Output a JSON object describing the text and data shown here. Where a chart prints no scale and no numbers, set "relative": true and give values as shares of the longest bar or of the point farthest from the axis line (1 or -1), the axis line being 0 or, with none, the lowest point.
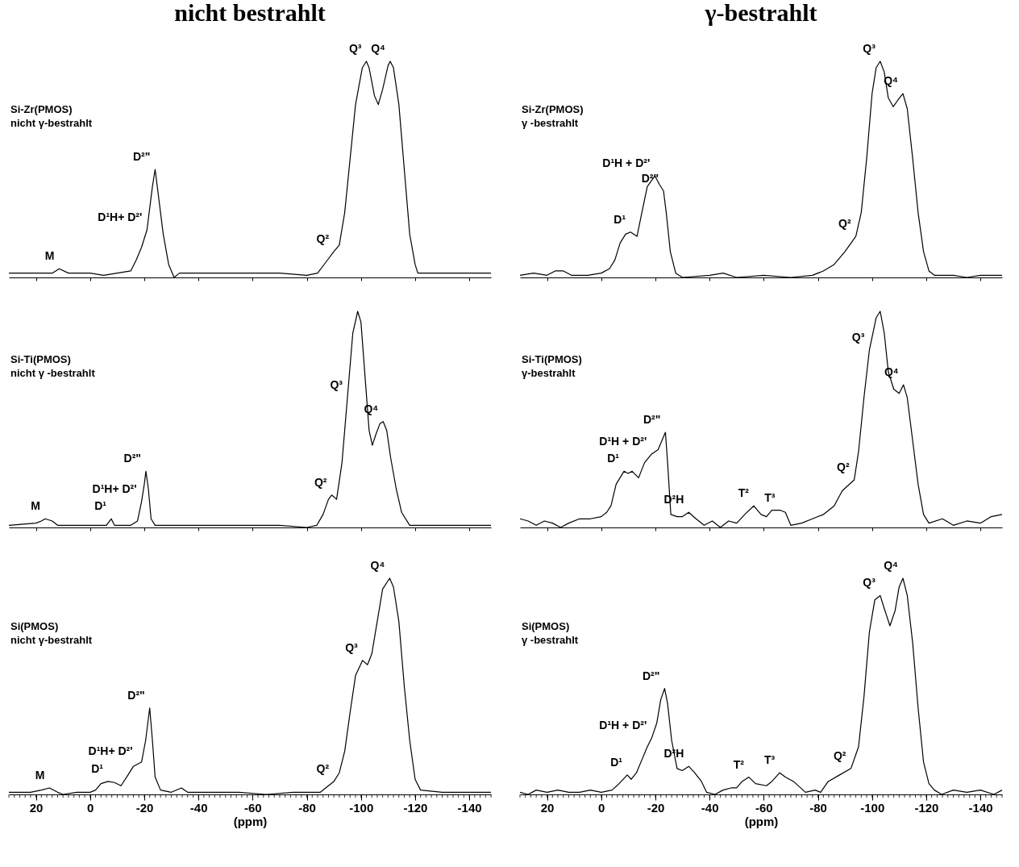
{
  "chart_data": [
    {
      "type": "line",
      "title": "nicht bestrahlt",
      "relative": true,
      "xlim": [
        30,
        -148
      ],
      "xticks": [
        20,
        0,
        -20,
        -40,
        -60,
        -80,
        -100,
        -120,
        -140
      ],
      "tick_labels": false,
      "series": [
        {
          "color": "#000000",
          "x": [
            30,
            20,
            14,
            11.4,
            8,
            0,
            -5,
            -10,
            -15,
            -17,
            -19,
            -21,
            -23,
            -24,
            -25,
            -27,
            -29,
            -31,
            -33,
            -40,
            -50,
            -60,
            -70,
            -80,
            -84,
            -87,
            -90,
            -92,
            -94,
            -96,
            -98,
            -100.5,
            -102,
            -103,
            -105,
            -106.4,
            -108,
            -110,
            -110.8,
            -112,
            -114,
            -116,
            -118,
            -120,
            -121,
            -125,
            -135,
            -148
          ],
          "values": [
            0.02,
            0.02,
            0.02,
            0.04,
            0.02,
            0.02,
            0.01,
            0.02,
            0.03,
            0.08,
            0.14,
            0.22,
            0.42,
            0.5,
            0.4,
            0.2,
            0.06,
            0.0,
            0.02,
            0.02,
            0.02,
            0.02,
            0.02,
            0.01,
            0.02,
            0.07,
            0.12,
            0.15,
            0.3,
            0.55,
            0.8,
            0.97,
            1.0,
            0.97,
            0.84,
            0.8,
            0.87,
            0.98,
            1.0,
            0.97,
            0.8,
            0.5,
            0.2,
            0.06,
            0.02,
            0.02,
            0.02,
            0.02
          ]
        }
      ],
      "annotations": [
        "Si-Zr(PMOS)\nnicht γ-bestrahlt",
        {
          "text": "M",
          "x": 11.4,
          "y": 0.04
        },
        {
          "text": "D¹H+ D²'",
          "x": -21,
          "y": 0.22
        },
        {
          "text": "D²\"",
          "x": -24,
          "y": 0.5
        },
        {
          "text": "Q²",
          "x": -90,
          "y": 0.12
        },
        {
          "text": "Q³",
          "x": -102,
          "y": 1.0
        },
        {
          "text": "Q⁴",
          "x": -110.8,
          "y": 1.0
        }
      ]
    },
    {
      "type": "line",
      "relative": true,
      "xlim": [
        30,
        -148
      ],
      "xticks": [
        20,
        0,
        -20,
        -40,
        -60,
        -80,
        -100,
        -120,
        -140
      ],
      "tick_labels": false,
      "series": [
        {
          "color": "#000000",
          "x": [
            30,
            20,
            18,
            16.6,
            14,
            12,
            5,
            0,
            -6,
            -7.8,
            -9,
            -15,
            -17.5,
            -19,
            -20,
            -20.6,
            -21.5,
            -22.5,
            -24,
            -30,
            -40,
            -50,
            -60,
            -70,
            -80,
            -83.7,
            -86,
            -88,
            -89.2,
            -91,
            -93,
            -95,
            -97,
            -98.8,
            -100,
            -101.5,
            -103,
            -104.2,
            -105.5,
            -107,
            -108.2,
            -109.5,
            -111,
            -113,
            -115,
            -118,
            -125,
            -135,
            -148
          ],
          "values": [
            0.01,
            0.02,
            0.03,
            0.04,
            0.03,
            0.01,
            0.01,
            0.01,
            0.01,
            0.04,
            0.01,
            0.01,
            0.03,
            0.12,
            0.2,
            0.26,
            0.18,
            0.04,
            0.01,
            0.01,
            0.01,
            0.01,
            0.01,
            0.01,
            0.0,
            0.01,
            0.06,
            0.13,
            0.15,
            0.13,
            0.3,
            0.6,
            0.9,
            1.0,
            0.95,
            0.7,
            0.45,
            0.38,
            0.43,
            0.48,
            0.49,
            0.45,
            0.32,
            0.18,
            0.07,
            0.01,
            0.01,
            0.01,
            0.01
          ]
        }
      ],
      "annotations": [
        "Si-Ti(PMOS)\nnicht γ -bestrahlt",
        {
          "text": "M",
          "x": 16.6,
          "y": 0.04
        },
        {
          "text": "D¹",
          "x": -7.8,
          "y": 0.04
        },
        {
          "text": "D¹H+ D²'",
          "x": -19,
          "y": 0.12
        },
        {
          "text": "D²\"",
          "x": -20.6,
          "y": 0.26
        },
        {
          "text": "Q²",
          "x": -89.2,
          "y": 0.15
        },
        {
          "text": "Q³",
          "x": -95,
          "y": 0.6
        },
        {
          "text": "Q⁴",
          "x": -108.2,
          "y": 0.49
        }
      ]
    },
    {
      "type": "line",
      "relative": true,
      "xlim": [
        30,
        -148
      ],
      "xticks": [
        20,
        0,
        -20,
        -40,
        -60,
        -80,
        -100,
        -120,
        -140
      ],
      "tick_labels": "x",
      "xlabel": "(ppm)",
      "series": [
        {
          "color": "#000000",
          "x": [
            30,
            22,
            18,
            15,
            12,
            10,
            5,
            0,
            -2,
            -4,
            -6.6,
            -9,
            -11.4,
            -14,
            -16,
            -17.5,
            -19,
            -20.5,
            -22,
            -23,
            -24,
            -26,
            -30,
            -33.7,
            -36,
            -45,
            -55,
            -65,
            -75,
            -85,
            -88,
            -90,
            -92,
            -94,
            -96,
            -98,
            -100.6,
            -102.4,
            -104,
            -106,
            -108,
            -110.6,
            -112,
            -114,
            -116,
            -118,
            -120,
            -122,
            -130,
            -140,
            -148
          ],
          "values": [
            0.01,
            0.01,
            0.02,
            0.03,
            0.01,
            0.0,
            0.01,
            0.01,
            0.02,
            0.05,
            0.06,
            0.055,
            0.04,
            0.09,
            0.13,
            0.14,
            0.15,
            0.25,
            0.4,
            0.25,
            0.08,
            0.02,
            0.01,
            0.03,
            0.01,
            0.01,
            0.01,
            0.0,
            0.01,
            0.01,
            0.04,
            0.06,
            0.1,
            0.2,
            0.38,
            0.55,
            0.62,
            0.6,
            0.65,
            0.8,
            0.95,
            1.0,
            0.96,
            0.8,
            0.5,
            0.25,
            0.07,
            0.02,
            0.01,
            0.01,
            0.01
          ]
        }
      ],
      "annotations": [
        "Si(PMOS)\nnicht γ-bestrahlt",
        {
          "text": "M",
          "x": 15,
          "y": 0.03
        },
        {
          "text": "D¹",
          "x": -6.6,
          "y": 0.06
        },
        {
          "text": "D¹H+ D²'",
          "x": -17.5,
          "y": 0.14
        },
        {
          "text": "D²\"",
          "x": -22,
          "y": 0.4
        },
        {
          "text": "Q²",
          "x": -90,
          "y": 0.06
        },
        {
          "text": "Q³",
          "x": -100.6,
          "y": 0.62
        },
        {
          "text": "Q⁴",
          "x": -110.6,
          "y": 1.0
        }
      ]
    },
    {
      "type": "line",
      "title": "γ-bestrahlt",
      "relative": true,
      "xlim": [
        30,
        -148
      ],
      "xticks": [
        20,
        0,
        -20,
        -40,
        -60,
        -80,
        -100,
        -120,
        -140
      ],
      "tick_labels": false,
      "series": [
        {
          "color": "#000000",
          "x": [
            30,
            25,
            20,
            17,
            14,
            11,
            7,
            5,
            0,
            -3,
            -5,
            -7,
            -9,
            -10.8,
            -13.2,
            -15,
            -17,
            -19.8,
            -21.5,
            -23,
            -24,
            -25.5,
            -27.5,
            -30,
            -40,
            -45,
            -50,
            -60,
            -70,
            -78,
            -82,
            -86,
            -90,
            -94,
            -96,
            -98,
            -100,
            -101.5,
            -103,
            -104.5,
            -106,
            -107.8,
            -109.5,
            -111.4,
            -113,
            -115,
            -117,
            -119,
            -121,
            -123,
            -130,
            -135,
            -140,
            -148
          ],
          "values": [
            0.01,
            0.02,
            0.01,
            0.03,
            0.03,
            0.01,
            0.01,
            0.01,
            0.02,
            0.04,
            0.08,
            0.16,
            0.2,
            0.21,
            0.19,
            0.3,
            0.42,
            0.47,
            0.43,
            0.4,
            0.3,
            0.12,
            0.02,
            0.0,
            0.01,
            0.02,
            0.0,
            0.01,
            0.0,
            0.01,
            0.03,
            0.06,
            0.12,
            0.19,
            0.3,
            0.55,
            0.85,
            0.97,
            1.0,
            0.95,
            0.83,
            0.79,
            0.82,
            0.85,
            0.78,
            0.55,
            0.3,
            0.12,
            0.03,
            0.01,
            0.01,
            0.0,
            0.01,
            0.01
          ]
        }
      ],
      "annotations": [
        "Si-Zr(PMOS)\nγ -bestrahlt",
        {
          "text": "D¹",
          "x": -10.8,
          "y": 0.21
        },
        {
          "text": "D¹H +  D²'",
          "x": -19.8,
          "y": 0.47
        },
        {
          "text": "D²\"",
          "x": -23,
          "y": 0.4
        },
        {
          "text": "Q²",
          "x": -94,
          "y": 0.19
        },
        {
          "text": "Q³",
          "x": -103,
          "y": 1.0
        },
        {
          "text": "Q⁴",
          "x": -111.4,
          "y": 0.85
        }
      ]
    },
    {
      "type": "line",
      "relative": true,
      "xlim": [
        30,
        -148
      ],
      "xticks": [
        20,
        0,
        -20,
        -40,
        -60,
        -80,
        -100,
        -120,
        -140
      ],
      "tick_labels": false,
      "series": [
        {
          "color": "#000000",
          "x": [
            30,
            27,
            24,
            21,
            18,
            15,
            12,
            8,
            4,
            0,
            -2,
            -3.6,
            -5.5,
            -8.4,
            -10,
            -11.4,
            -13.8,
            -16,
            -18.6,
            -21,
            -23.7,
            -24.5,
            -25.7,
            -28,
            -30,
            -32.3,
            -35,
            -38,
            -41,
            -44,
            -47,
            -50,
            -53,
            -56.3,
            -59,
            -61,
            -63,
            -66,
            -68,
            -70,
            -74,
            -78,
            -82,
            -86,
            -89,
            -93.4,
            -95,
            -97,
            -99,
            -101.5,
            -103,
            -104.5,
            -106,
            -108,
            -110,
            -111.6,
            -113,
            -115,
            -117,
            -119,
            -121,
            -126,
            -130,
            -135,
            -140,
            -144,
            -148
          ],
          "values": [
            0.04,
            0.03,
            0.01,
            0.03,
            0.02,
            0.0,
            0.02,
            0.04,
            0.04,
            0.05,
            0.07,
            0.1,
            0.2,
            0.26,
            0.25,
            0.26,
            0.23,
            0.3,
            0.34,
            0.36,
            0.44,
            0.3,
            0.06,
            0.05,
            0.05,
            0.07,
            0.04,
            0.01,
            0.03,
            0.0,
            0.03,
            0.02,
            0.06,
            0.1,
            0.06,
            0.05,
            0.08,
            0.08,
            0.07,
            0.01,
            0.02,
            0.04,
            0.06,
            0.1,
            0.17,
            0.22,
            0.35,
            0.6,
            0.82,
            0.97,
            1.0,
            0.9,
            0.72,
            0.64,
            0.62,
            0.66,
            0.6,
            0.4,
            0.2,
            0.06,
            0.02,
            0.04,
            0.01,
            0.03,
            0.02,
            0.05,
            0.06
          ]
        }
      ],
      "annotations": [
        "Si-Ti(PMOS)\nγ-bestrahlt",
        {
          "text": "D¹",
          "x": -8.4,
          "y": 0.26
        },
        {
          "text": "D¹H +  D²'",
          "x": -18.6,
          "y": 0.34
        },
        {
          "text": "D²\"",
          "x": -23.7,
          "y": 0.44
        },
        {
          "text": "D²H",
          "x": -32.3,
          "y": 0.07
        },
        {
          "text": "T²",
          "x": -56.3,
          "y": 0.1
        },
        {
          "text": "T³",
          "x": -66,
          "y": 0.08
        },
        {
          "text": "Q²",
          "x": -93.4,
          "y": 0.22
        },
        {
          "text": "Q³",
          "x": -99,
          "y": 0.82
        },
        {
          "text": "Q⁴",
          "x": -111.6,
          "y": 0.66
        }
      ]
    },
    {
      "type": "line",
      "relative": true,
      "xlim": [
        30,
        -148
      ],
      "xticks": [
        20,
        0,
        -20,
        -40,
        -60,
        -80,
        -100,
        -120,
        -140
      ],
      "tick_labels": "x",
      "xlabel": "(ppm)",
      "series": [
        {
          "color": "#000000",
          "x": [
            30,
            27,
            24,
            20,
            16,
            12,
            8,
            4,
            0,
            -4,
            -6.6,
            -9.6,
            -11.1,
            -13,
            -15,
            -17,
            -18.6,
            -20.5,
            -22,
            -23.4,
            -24.5,
            -26,
            -28,
            -29.9,
            -32.3,
            -34.5,
            -37,
            -38.9,
            -42,
            -45,
            -47.9,
            -50,
            -52,
            -54.5,
            -57,
            -61,
            -63,
            -65.9,
            -68,
            -71,
            -75.4,
            -79,
            -81,
            -83.8,
            -88,
            -92.2,
            -95,
            -97,
            -99,
            -101,
            -103,
            -104.5,
            -106.6,
            -108.5,
            -110,
            -111.4,
            -113,
            -115,
            -117,
            -119,
            -121,
            -123,
            -125.7,
            -130,
            -135,
            -140,
            -145,
            -148
          ],
          "values": [
            0.01,
            0.0,
            0.02,
            0.01,
            0.02,
            0.01,
            0.01,
            0.02,
            0.01,
            0.02,
            0.05,
            0.09,
            0.07,
            0.1,
            0.16,
            0.22,
            0.26,
            0.33,
            0.44,
            0.49,
            0.42,
            0.25,
            0.12,
            0.11,
            0.13,
            0.1,
            0.06,
            0.01,
            0.0,
            0.02,
            0.03,
            0.03,
            0.06,
            0.08,
            0.05,
            0.04,
            0.06,
            0.1,
            0.08,
            0.06,
            0.01,
            0.02,
            0.01,
            0.06,
            0.09,
            0.12,
            0.22,
            0.45,
            0.75,
            0.9,
            0.92,
            0.86,
            0.78,
            0.85,
            0.96,
            1.0,
            0.92,
            0.7,
            0.4,
            0.15,
            0.05,
            0.02,
            0.0,
            0.02,
            0.01,
            0.02,
            0.0,
            0.02
          ]
        }
      ],
      "annotations": [
        "Si(PMOS)\nγ -bestrahlt",
        {
          "text": "D¹",
          "x": -9.6,
          "y": 0.09
        },
        {
          "text": "D¹H + D²'",
          "x": -18.6,
          "y": 0.26
        },
        {
          "text": "D²\"",
          "x": -23.4,
          "y": 0.49
        },
        {
          "text": "D²H",
          "x": -32.3,
          "y": 0.13
        },
        {
          "text": "T²",
          "x": -54.5,
          "y": 0.08
        },
        {
          "text": "T³",
          "x": -65.9,
          "y": 0.1
        },
        {
          "text": "Q²",
          "x": -92.2,
          "y": 0.12
        },
        {
          "text": "Q³",
          "x": -103,
          "y": 0.92
        },
        {
          "text": "Q⁴",
          "x": -111.4,
          "y": 1.0
        }
      ]
    }
  ]
}
